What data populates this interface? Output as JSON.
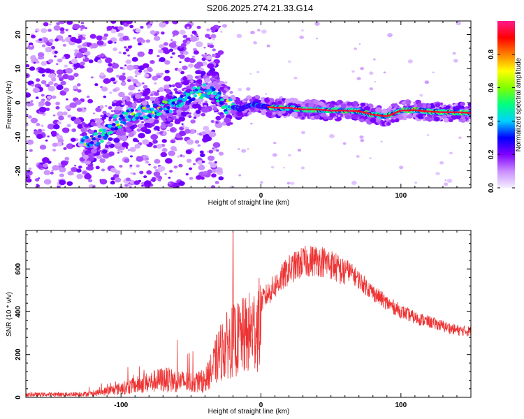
{
  "title": "S206.2025.274.21.33.G14",
  "chart_data": [
    {
      "type": "heatmap",
      "xlabel": "Height of straight line (km)",
      "ylabel": "Frequency (Hz)",
      "xlim": [
        -168,
        150
      ],
      "ylim": [
        -25,
        24
      ],
      "xticks": [
        -100,
        0,
        100
      ],
      "yticks": [
        -20,
        -10,
        0,
        10,
        20
      ],
      "colorbar": {
        "label": "Normalized spectral amplitude",
        "range": [
          0,
          1
        ],
        "ticks": [
          0.0,
          0.2,
          0.4,
          0.6,
          0.8
        ],
        "colors": [
          "#f4efff",
          "#c98dff",
          "#8000ff",
          "#0000ff",
          "#00d2ff",
          "#00ff80",
          "#80ff00",
          "#ffff00",
          "#ff8000",
          "#ff0000",
          "#ff1a8c"
        ]
      },
      "ridge": {
        "x": [
          -125,
          -115,
          -105,
          -95,
          -85,
          -75,
          -65,
          -55,
          -45,
          -35,
          -30,
          -25,
          -20,
          -15,
          -10,
          -5,
          0,
          10,
          20,
          30,
          40,
          50,
          60,
          70,
          80,
          90,
          100,
          110,
          120,
          130,
          140,
          150
        ],
        "y": [
          -12,
          -10,
          -6,
          -4,
          -3,
          -2,
          -1,
          1,
          3,
          4,
          1,
          -1,
          -1,
          -2,
          -1,
          -0.5,
          -1,
          -1.5,
          -1.5,
          -2,
          -2,
          -2.3,
          -2.3,
          -2.5,
          -3.5,
          -4,
          -2.3,
          -2.2,
          -2.6,
          -2.8,
          -2.8,
          -3
        ]
      }
    },
    {
      "type": "line",
      "xlabel": "Height of straight line (km)",
      "ylabel": "SNR (10 * v/v)",
      "xlim": [
        -168,
        150
      ],
      "ylim": [
        0,
        780
      ],
      "xticks": [
        -100,
        0,
        100
      ],
      "yticks": [
        0,
        200,
        400,
        600
      ],
      "series_color": "#ee3333",
      "envelope": {
        "x": [
          -168,
          -140,
          -120,
          -100,
          -80,
          -70,
          -60,
          -50,
          -40,
          -35,
          -30,
          -25,
          -20,
          -15,
          -10,
          -5,
          0,
          10,
          20,
          30,
          40,
          50,
          60,
          70,
          80,
          90,
          100,
          110,
          120,
          130,
          140,
          150
        ],
        "y": [
          18,
          20,
          25,
          60,
          100,
          120,
          110,
          100,
          110,
          180,
          280,
          330,
          360,
          380,
          400,
          440,
          480,
          560,
          640,
          680,
          690,
          670,
          620,
          560,
          500,
          450,
          410,
          380,
          360,
          340,
          320,
          315
        ]
      },
      "peak": {
        "x": -20,
        "y": 770
      }
    }
  ]
}
